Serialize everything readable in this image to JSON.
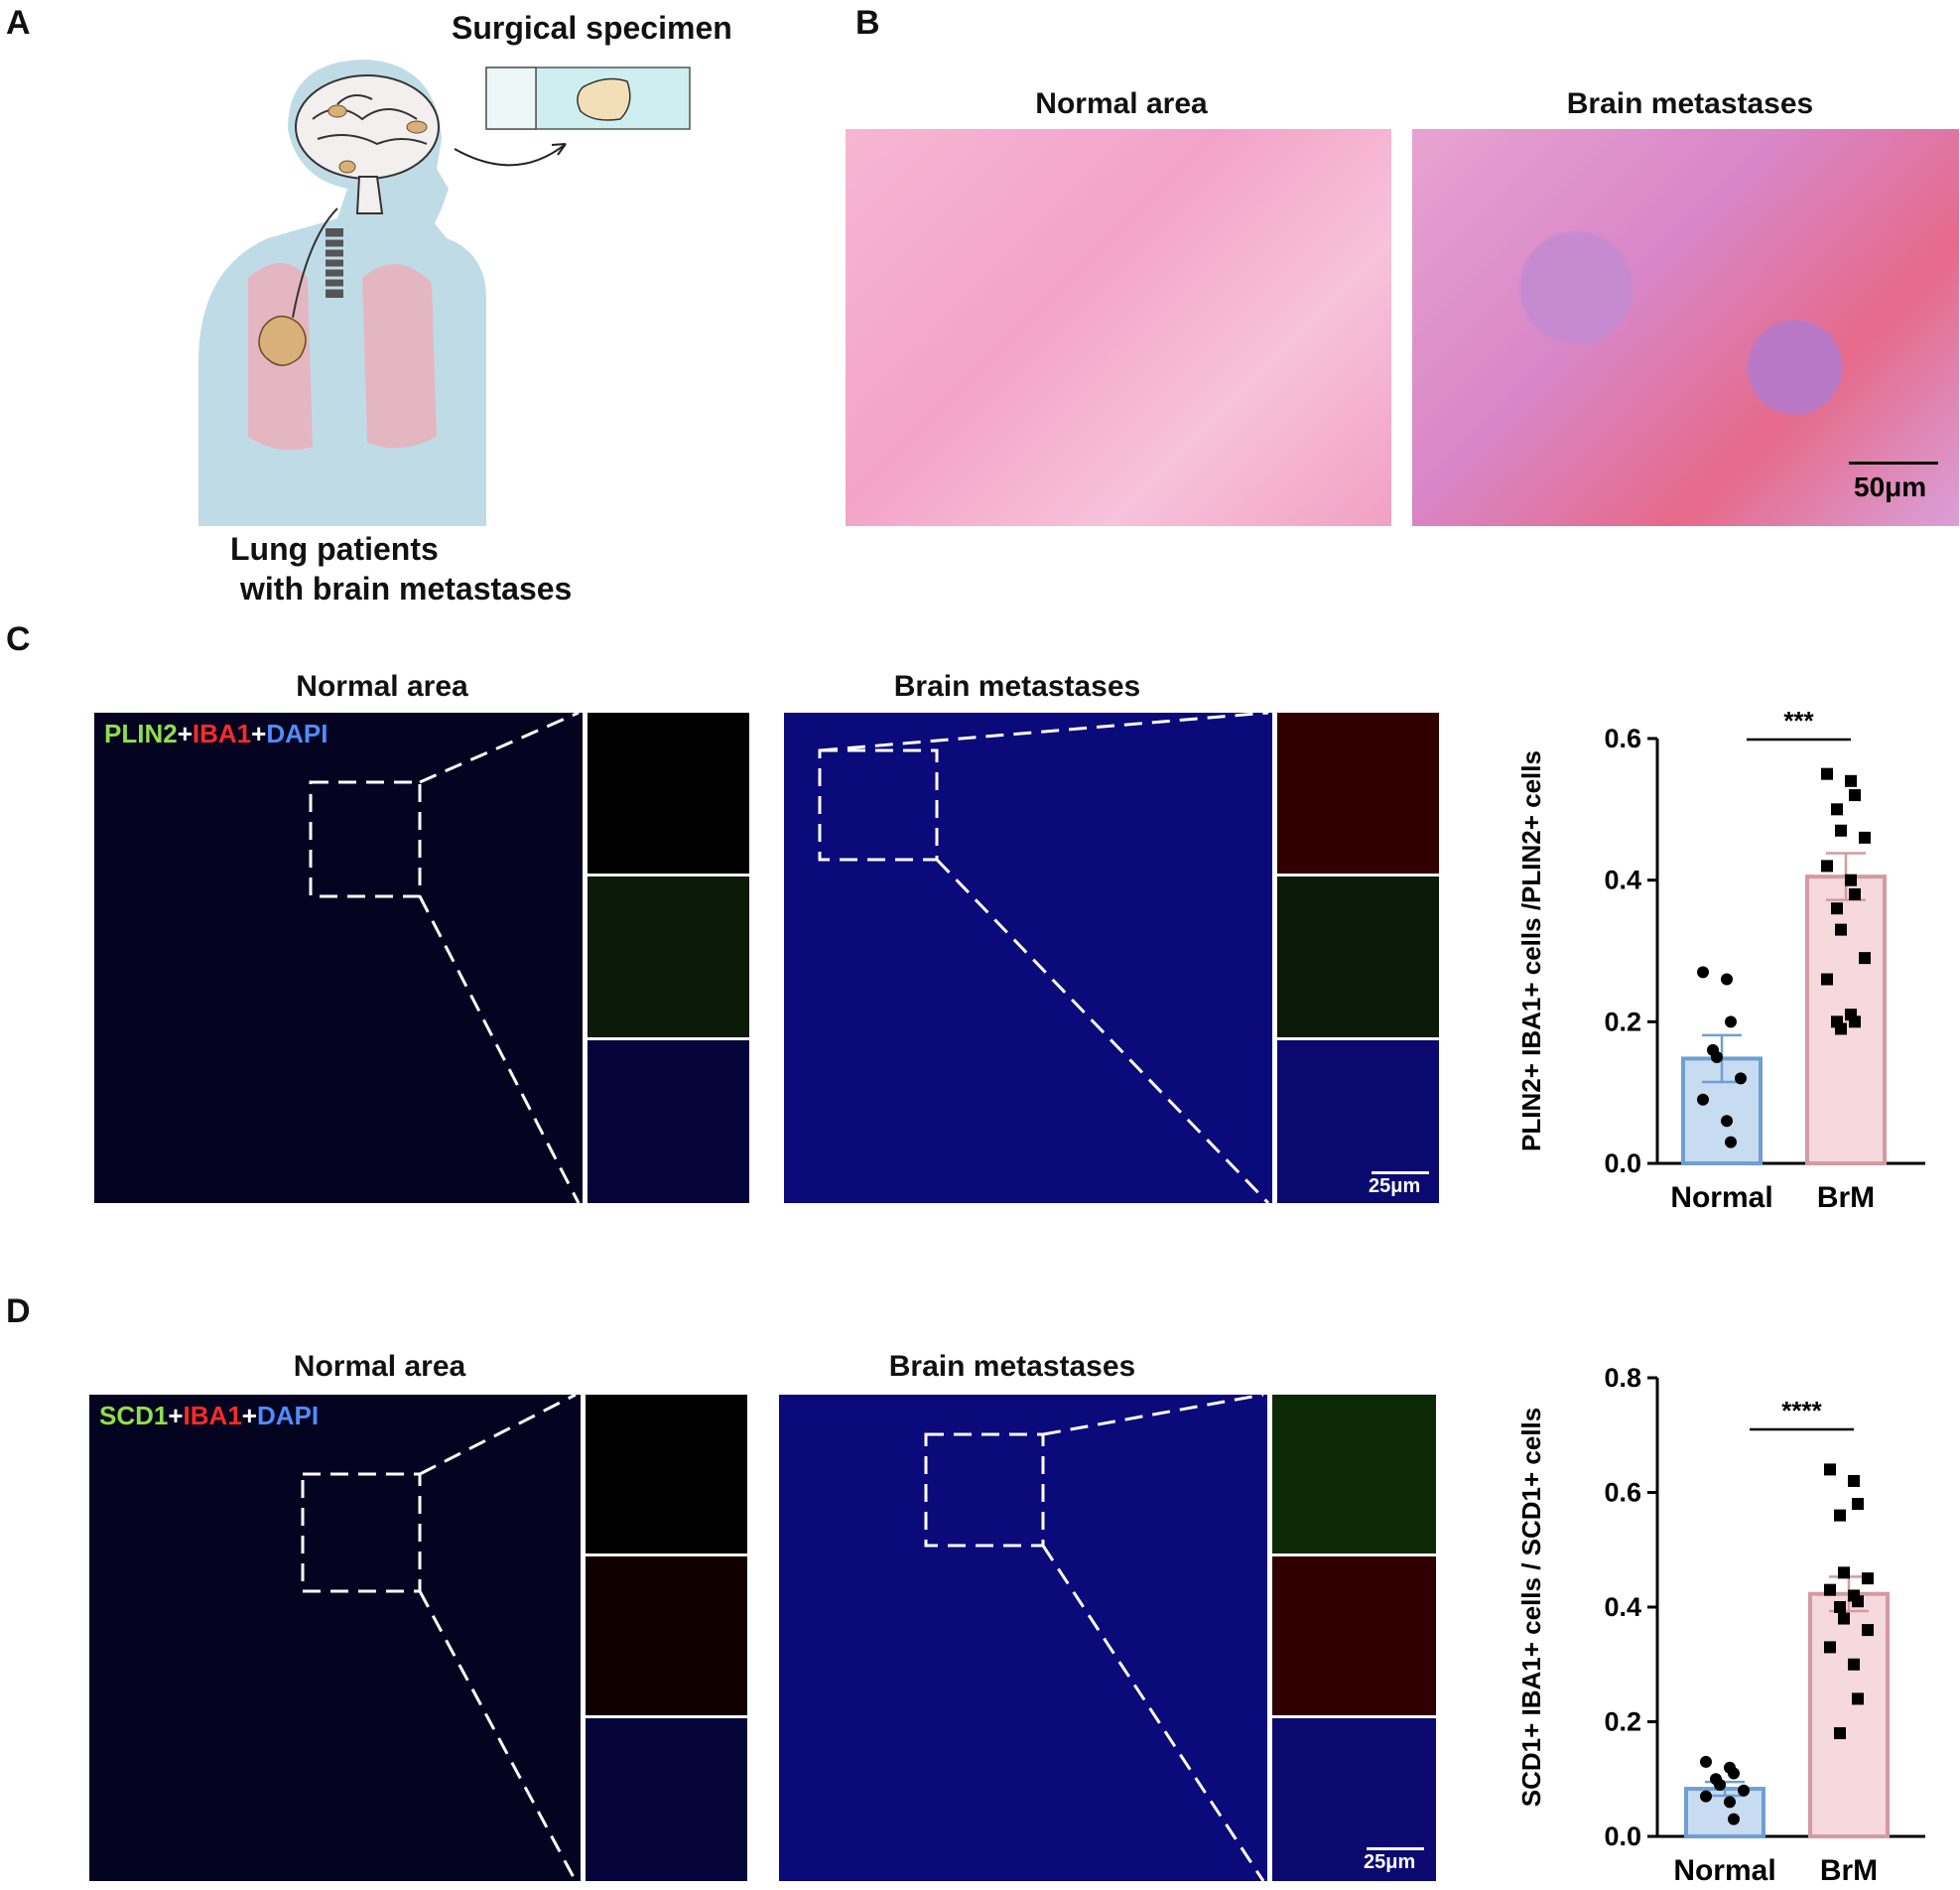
{
  "panels": {
    "A": {
      "letter": "A",
      "specimen_label": "Surgical specimen",
      "caption_line1": "Lung patients",
      "caption_line2": "with brain metastases"
    },
    "B": {
      "letter": "B",
      "left_title": "Normal area",
      "right_title": "Brain metastases",
      "scale": "50μm"
    },
    "C": {
      "letter": "C",
      "left_title": "Normal area",
      "right_title": "Brain metastases",
      "stain": {
        "m1": "PLIN2",
        "plus1": "+",
        "m2": "IBA1",
        "plus2": "+",
        "m3": "DAPI"
      },
      "scale": "25μm"
    },
    "D": {
      "letter": "D",
      "left_title": "Normal area",
      "right_title": "Brain metastases",
      "stain": {
        "m1": "SCD1",
        "plus1": "+",
        "m2": "IBA1",
        "plus2": "+",
        "m3": "DAPI"
      },
      "scale": "25μm"
    }
  },
  "colors": {
    "normal_bar": "#c7dcf0",
    "normal_edge": "#6f9fd2",
    "brm_bar": "#f6d9dd",
    "brm_edge": "#d49aa2",
    "green": "#8ee04a",
    "red": "#ff2a2a",
    "blue": "#4f8dff"
  },
  "chart_data": [
    {
      "type": "bar",
      "panel": "C",
      "categories": [
        "Normal",
        "BrM"
      ],
      "values": [
        0.148,
        0.405
      ],
      "sem": [
        0.033,
        0.033
      ],
      "ylabel": "PLIN2+ IBA1+  cells /PLIN2+ cells",
      "ylim": [
        0,
        0.6
      ],
      "yticks": [
        "0.0",
        "0.2",
        "0.4",
        "0.6"
      ],
      "significance": "***",
      "points": [
        [
          0.27,
          0.26,
          0.2,
          0.16,
          0.15,
          0.12,
          0.09,
          0.06,
          0.03
        ],
        [
          0.55,
          0.54,
          0.52,
          0.5,
          0.47,
          0.46,
          0.42,
          0.4,
          0.38,
          0.36,
          0.33,
          0.29,
          0.26,
          0.21,
          0.2,
          0.2,
          0.19
        ]
      ]
    },
    {
      "type": "bar",
      "panel": "D",
      "categories": [
        "Normal",
        "BrM"
      ],
      "values": [
        0.083,
        0.423
      ],
      "sem": [
        0.012,
        0.03
      ],
      "ylabel": "SCD1+ IBA1+  cells / SCD1+ cells",
      "ylim": [
        0,
        0.8
      ],
      "yticks": [
        "0.0",
        "0.2",
        "0.4",
        "0.6",
        "0.8"
      ],
      "significance": "****",
      "points": [
        [
          0.13,
          0.12,
          0.11,
          0.1,
          0.09,
          0.08,
          0.07,
          0.06,
          0.03
        ],
        [
          0.64,
          0.62,
          0.58,
          0.56,
          0.46,
          0.45,
          0.43,
          0.42,
          0.41,
          0.4,
          0.38,
          0.36,
          0.33,
          0.3,
          0.24,
          0.18
        ]
      ]
    }
  ]
}
